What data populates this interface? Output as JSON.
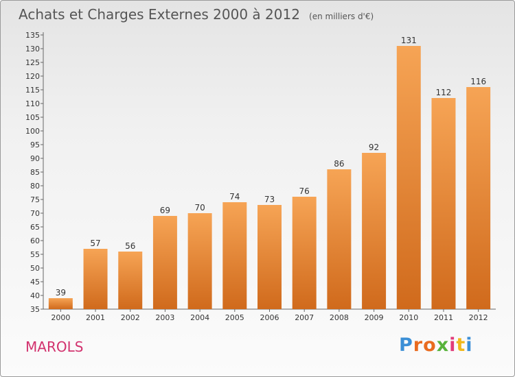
{
  "header": {
    "title": "Achats et Charges Externes 2000 à 2012",
    "unit": "(en milliers d'€)"
  },
  "footer": {
    "place": "MAROLS",
    "brand": "Proxiti",
    "brand_colors": [
      "#3b8fd6",
      "#e96b1f",
      "#57b33b",
      "#e23c7a",
      "#f0b81c"
    ]
  },
  "colors": {
    "bar_top": "#f6a455",
    "bar_bottom": "#d06a1c",
    "axis": "#666666",
    "title": "#555555",
    "place": "#d2326e"
  },
  "chart_data": {
    "type": "bar",
    "title": "Achats et Charges Externes 2000 à 2012",
    "subtitle": "(en milliers d'€)",
    "xlabel": "",
    "ylabel": "",
    "categories": [
      "2000",
      "2001",
      "2002",
      "2003",
      "2004",
      "2005",
      "2006",
      "2007",
      "2008",
      "2009",
      "2010",
      "2011",
      "2012"
    ],
    "values": [
      39,
      57,
      56,
      69,
      70,
      74,
      73,
      76,
      86,
      92,
      131,
      112,
      116
    ],
    "ylim": [
      35,
      135
    ],
    "ytick_step": 5,
    "grid": false,
    "data_labels": true,
    "legend": "none"
  }
}
